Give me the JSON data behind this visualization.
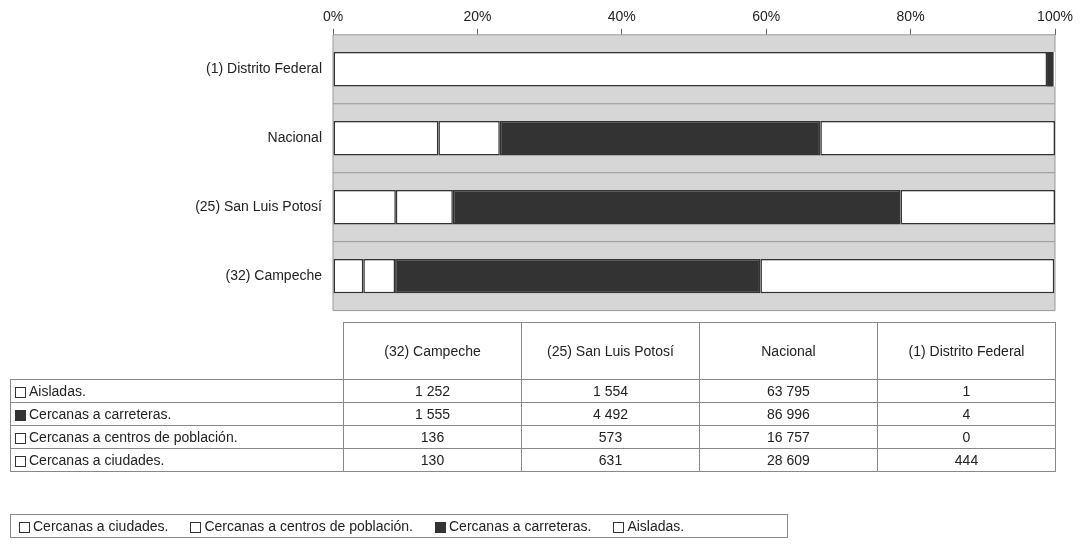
{
  "chart_data": [
    {
      "type": "bar",
      "orientation": "horizontal",
      "stacked": true,
      "categories": [
        "(1) Distrito Federal",
        "Nacional",
        "(25) San Luis Potosí",
        "(32) Campeche"
      ],
      "series": [
        {
          "name": "Cercanas a ciudades.",
          "color": "#ffffff",
          "values": [
            98.9,
            14.6,
            8.7,
            4.2
          ]
        },
        {
          "name": "Cercanas a centros de población.",
          "color": "#ffffff",
          "values": [
            0,
            8.5,
            7.9,
            4.4
          ]
        },
        {
          "name": "Cercanas a carreteras.",
          "color": "#333333",
          "values": [
            0.9,
            44.4,
            62.0,
            50.6
          ]
        },
        {
          "name": "Aisladas.",
          "color": "#ffffff",
          "values": [
            0.2,
            32.5,
            21.4,
            40.7
          ]
        }
      ],
      "xlim": [
        0,
        100
      ],
      "xticks": [
        {
          "value": 0,
          "label": "0%"
        },
        {
          "value": 20,
          "label": "20%"
        },
        {
          "value": 40,
          "label": "40%"
        },
        {
          "value": 60,
          "label": "60%"
        },
        {
          "value": 80,
          "label": "80%"
        },
        {
          "value": 100,
          "label": "100%"
        }
      ],
      "grid": false,
      "legend": "bottom"
    },
    {
      "type": "heatmap",
      "data_labels": true,
      "categories": [
        "(32) Campeche",
        "(25) San Luis Potosí",
        "Nacional",
        "(1) Distrito Federal"
      ],
      "y_categories": [
        "Aisladas.",
        "Cercanas a carreteras.",
        "Cercanas a centros de población.",
        "Cercanas a ciudades."
      ],
      "cells": [
        [
          1252,
          1554,
          63795,
          1
        ],
        [
          1555,
          4492,
          86996,
          4
        ],
        [
          136,
          573,
          16757,
          0
        ],
        [
          130,
          631,
          28609,
          444
        ]
      ]
    }
  ]
}
